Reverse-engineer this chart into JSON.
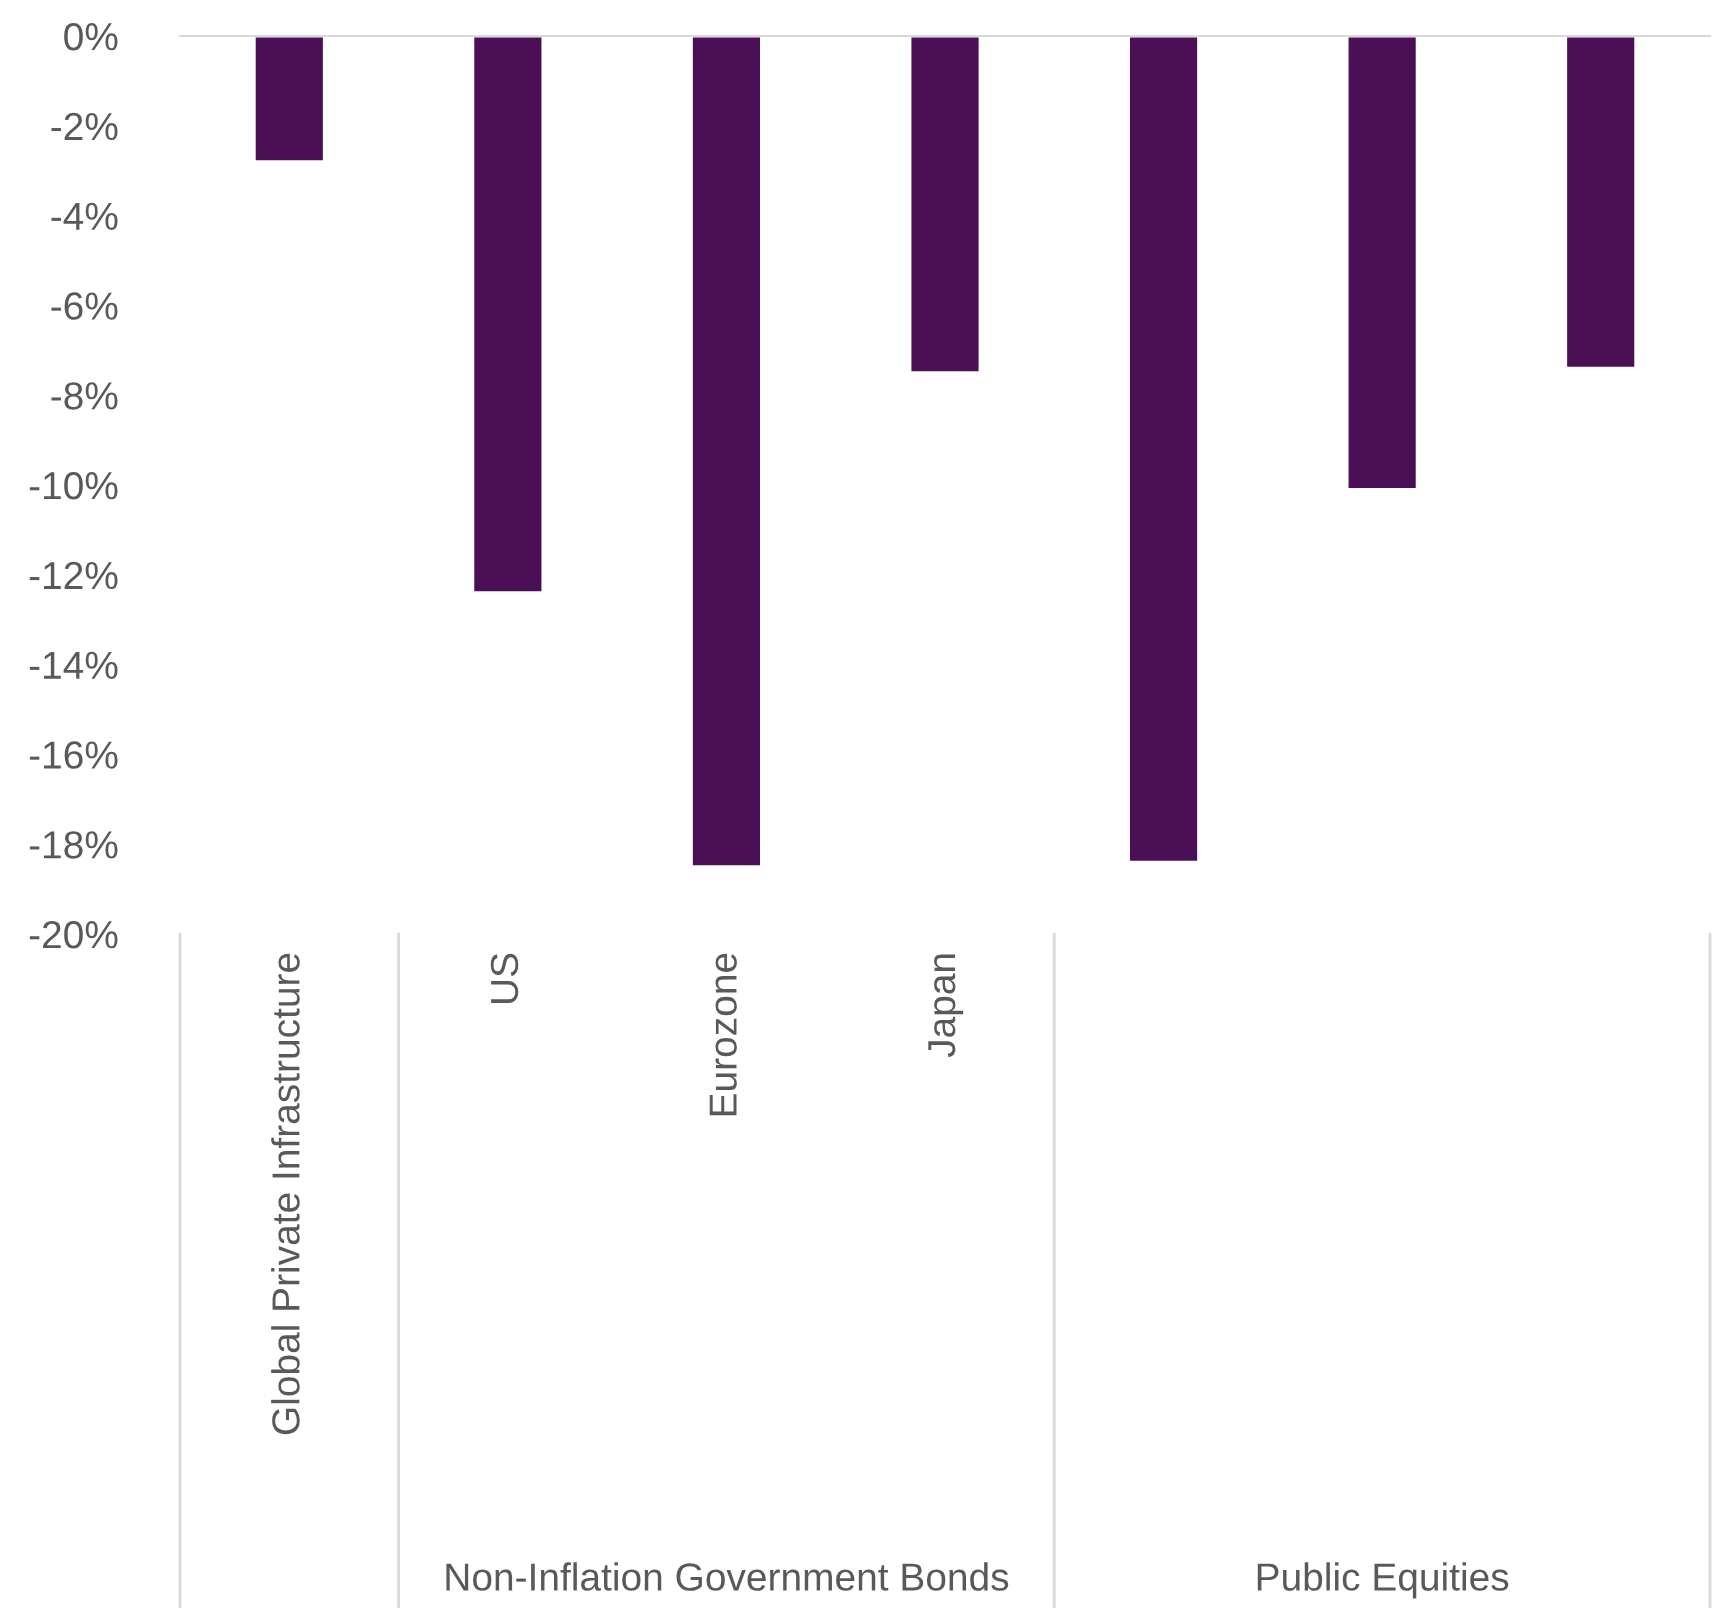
{
  "chart_data": {
    "type": "bar",
    "categories": [
      "Global Private Infrastructure",
      "US",
      "Eurozone",
      "Japan",
      null,
      null,
      null
    ],
    "values": [
      -2.8,
      -12.4,
      -18.5,
      -7.5,
      -18.4,
      -10.1,
      -7.4
    ],
    "color": "#4a0f55",
    "ylim": [
      -20,
      0
    ],
    "yticks": [
      {
        "value": 0,
        "label": "0%"
      },
      {
        "value": -2,
        "label": "-2%"
      },
      {
        "value": -4,
        "label": "-4%"
      },
      {
        "value": -6,
        "label": "-6%"
      },
      {
        "value": -8,
        "label": "-8%"
      },
      {
        "value": -10,
        "label": "-10%"
      },
      {
        "value": -12,
        "label": "-12%"
      },
      {
        "value": -14,
        "label": "-14%"
      },
      {
        "value": -16,
        "label": "-16%"
      },
      {
        "value": -18,
        "label": "-18%"
      },
      {
        "value": -20,
        "label": "-20%"
      }
    ],
    "annotations": [
      "Non-Inflation Government Bonds",
      "Public Equities"
    ],
    "grid": false,
    "legend": false
  }
}
